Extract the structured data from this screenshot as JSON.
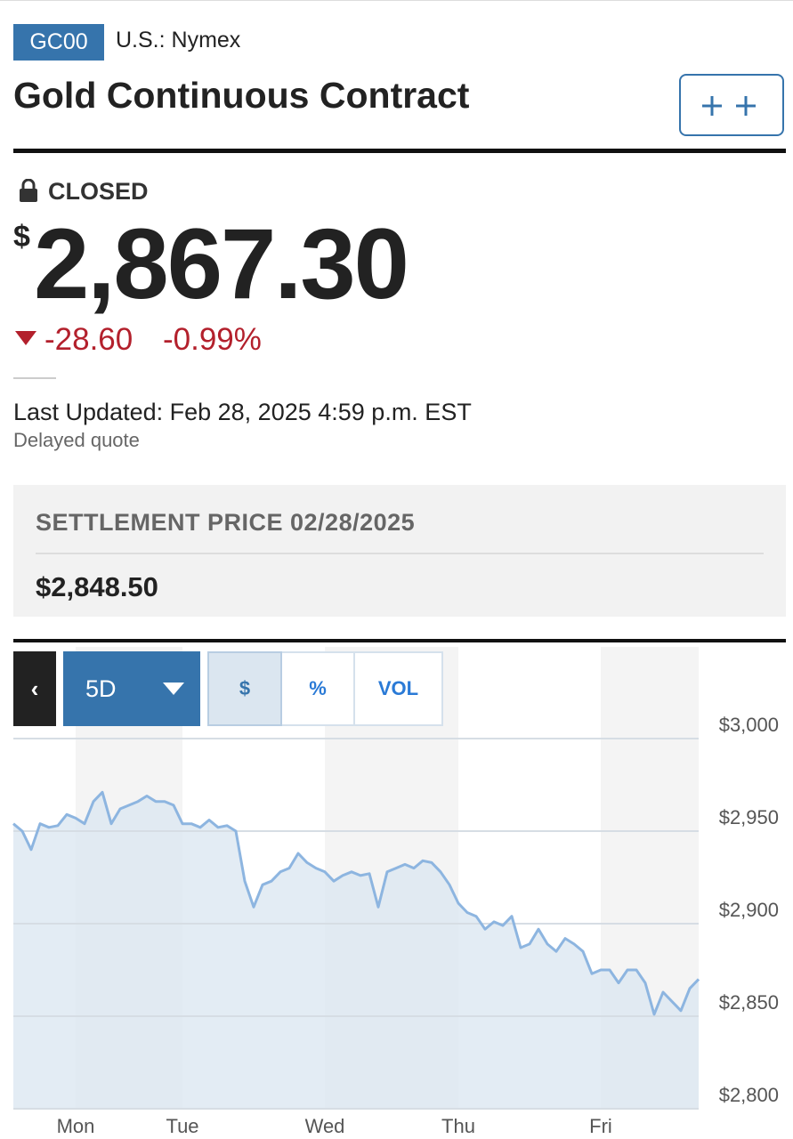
{
  "header": {
    "symbol": "GC00",
    "exchange": "U.S.: Nymex",
    "title": "Gold Continuous Contract"
  },
  "quote": {
    "status": "CLOSED",
    "currency": "$",
    "price": "2,867.30",
    "change": "-28.60",
    "change_percent": "-0.99%",
    "last_updated": "Last Updated: Feb 28, 2025 4:59 p.m. EST",
    "note": "Delayed quote"
  },
  "settlement": {
    "label": "SETTLEMENT PRICE 02/28/2025",
    "value": "$2,848.50"
  },
  "chart_controls": {
    "range": "5D",
    "modes": [
      "$",
      "%",
      "VOL"
    ]
  },
  "chart_data": {
    "type": "line",
    "categories": [
      null,
      null,
      null,
      null,
      null,
      null,
      null,
      "Mon",
      null,
      null,
      null,
      null,
      null,
      null,
      null,
      null,
      null,
      null,
      null,
      "Tue",
      null,
      null,
      null,
      null,
      null,
      null,
      null,
      null,
      null,
      null,
      null,
      null,
      null,
      null,
      null,
      "Wed",
      null,
      null,
      null,
      null,
      null,
      null,
      null,
      null,
      null,
      null,
      null,
      null,
      null,
      null,
      "Thu",
      null,
      null,
      null,
      null,
      null,
      null,
      null,
      null,
      null,
      null,
      null,
      null,
      null,
      null,
      null,
      "Fri",
      null,
      null,
      null,
      null,
      null,
      null,
      null,
      null,
      null,
      null,
      null
    ],
    "series": [
      {
        "color": "#8db5e0",
        "values": [
          2954,
          2950,
          2940,
          2954,
          2952,
          2953,
          2959,
          2957,
          2954,
          2966,
          2971,
          2954,
          2962,
          2964,
          2966,
          2969,
          2966,
          2966,
          2964,
          2954,
          2954,
          2952,
          2956,
          2952,
          2953,
          2950,
          2923,
          2909,
          2921,
          2923,
          2928,
          2930,
          2938,
          2933,
          2930,
          2928,
          2923,
          2926,
          2928,
          2926,
          2927,
          2909,
          2928,
          2930,
          2932,
          2930,
          2934,
          2933,
          2928,
          2921,
          2911,
          2906,
          2904,
          2897,
          2901,
          2899,
          2904,
          2887,
          2889,
          2897,
          2889,
          2885,
          2892,
          2889,
          2885,
          2873,
          2875,
          2875,
          2868,
          2875,
          2875,
          2868,
          2851,
          2863,
          2858,
          2853,
          2865,
          2870
        ]
      }
    ],
    "area_color": "#dce7f1",
    "ylim": [
      2800,
      3000
    ],
    "yticks": [
      {
        "value": 2800,
        "label": "$2,800"
      },
      {
        "value": 2850,
        "label": "$2,850"
      },
      {
        "value": 2900,
        "label": "$2,900"
      },
      {
        "value": 2950,
        "label": "$2,950"
      },
      {
        "value": 3000,
        "label": "$3,000"
      }
    ],
    "grid": true
  }
}
